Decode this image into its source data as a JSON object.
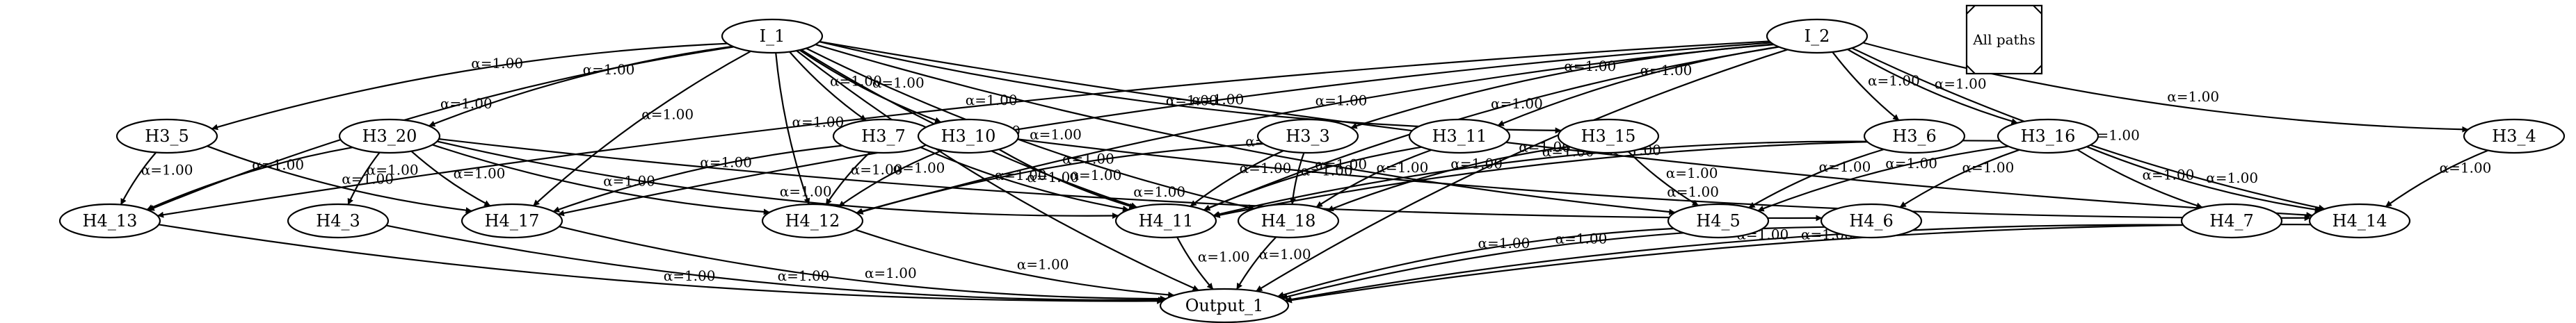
{
  "legend": {
    "label": "All paths"
  },
  "nodes": [
    {
      "id": "I_1",
      "label": "I_1"
    },
    {
      "id": "I_2",
      "label": "I_2"
    },
    {
      "id": "H3_5",
      "label": "H3_5"
    },
    {
      "id": "H3_20",
      "label": "H3_20"
    },
    {
      "id": "H3_7",
      "label": "H3_7"
    },
    {
      "id": "H3_10",
      "label": "H3_10"
    },
    {
      "id": "H3_3",
      "label": "H3_3"
    },
    {
      "id": "H3_11",
      "label": "H3_11"
    },
    {
      "id": "H3_15",
      "label": "H3_15"
    },
    {
      "id": "H3_6",
      "label": "H3_6"
    },
    {
      "id": "H3_16",
      "label": "H3_16"
    },
    {
      "id": "H3_4",
      "label": "H3_4"
    },
    {
      "id": "H4_13",
      "label": "H4_13"
    },
    {
      "id": "H4_3",
      "label": "H4_3"
    },
    {
      "id": "H4_17",
      "label": "H4_17"
    },
    {
      "id": "H4_12",
      "label": "H4_12"
    },
    {
      "id": "H4_11",
      "label": "H4_11"
    },
    {
      "id": "H4_18",
      "label": "H4_18"
    },
    {
      "id": "H4_5",
      "label": "H4_5"
    },
    {
      "id": "H4_6",
      "label": "H4_6"
    },
    {
      "id": "H4_7",
      "label": "H4_7"
    },
    {
      "id": "H4_14",
      "label": "H4_14"
    },
    {
      "id": "Output_1",
      "label": "Output_1"
    }
  ],
  "edges": [
    {
      "from": "I_1",
      "to": "H3_5",
      "label": "α=1.00"
    },
    {
      "from": "I_1",
      "to": "H3_20",
      "label": "α=1.00"
    },
    {
      "from": "I_1",
      "to": "H3_7",
      "label": "α=1.00"
    },
    {
      "from": "I_1",
      "to": "H3_10",
      "label": "α=1.00"
    },
    {
      "from": "I_1",
      "to": "H3_15",
      "label": "α=1.00"
    },
    {
      "from": "I_1",
      "to": "H4_13",
      "label": "α=1.00"
    },
    {
      "from": "I_1",
      "to": "H4_17",
      "label": "α=1.00"
    },
    {
      "from": "I_1",
      "to": "H4_12",
      "label": "α=1.00"
    },
    {
      "from": "I_1",
      "to": "H4_11",
      "label": "α=1.00"
    },
    {
      "from": "I_1",
      "to": "H4_18",
      "label": "α=1.00"
    },
    {
      "from": "I_1",
      "to": "H4_5",
      "label": "α=1.00"
    },
    {
      "from": "I_1",
      "to": "H4_14",
      "label": "α=1.00"
    },
    {
      "from": "I_1",
      "to": "Output_1",
      "label": "α=1.00"
    },
    {
      "from": "I_2",
      "to": "H3_3",
      "label": "α=1.00"
    },
    {
      "from": "I_2",
      "to": "H3_11",
      "label": "α=1.00"
    },
    {
      "from": "I_2",
      "to": "H3_6",
      "label": "α=1.00"
    },
    {
      "from": "I_2",
      "to": "H3_16",
      "label": "α=1.00"
    },
    {
      "from": "I_2",
      "to": "H3_4",
      "label": "α=1.00"
    },
    {
      "from": "I_2",
      "to": "H4_13",
      "label": "α=1.00"
    },
    {
      "from": "I_2",
      "to": "H4_17",
      "label": "α=1.00"
    },
    {
      "from": "I_2",
      "to": "H4_12",
      "label": "α=1.00"
    },
    {
      "from": "I_2",
      "to": "H4_11",
      "label": "α=1.00"
    },
    {
      "from": "I_2",
      "to": "H4_14",
      "label": "α=1.00"
    },
    {
      "from": "I_2",
      "to": "Output_1",
      "label": "α=1.00"
    },
    {
      "from": "H3_5",
      "to": "H4_13",
      "label": "α=1.00"
    },
    {
      "from": "H3_5",
      "to": "H4_17",
      "label": "α=1.00"
    },
    {
      "from": "H3_20",
      "to": "H4_13",
      "label": "α=1.00"
    },
    {
      "from": "H3_20",
      "to": "H4_3",
      "label": "α=1.00"
    },
    {
      "from": "H3_20",
      "to": "H4_17",
      "label": "α=1.00"
    },
    {
      "from": "H3_20",
      "to": "H4_12",
      "label": "α=1.00"
    },
    {
      "from": "H3_20",
      "to": "H4_11",
      "label": "α=1.00"
    },
    {
      "from": "H3_20",
      "to": "H4_6",
      "label": "α=1.00"
    },
    {
      "from": "H3_7",
      "to": "H4_17",
      "label": "α=1.00"
    },
    {
      "from": "H3_7",
      "to": "H4_12",
      "label": "α=1.00"
    },
    {
      "from": "H3_7",
      "to": "H4_11",
      "label": "α=1.00"
    },
    {
      "from": "H3_10",
      "to": "H4_12",
      "label": "α=1.00"
    },
    {
      "from": "H3_10",
      "to": "H4_11",
      "label": "α=1.00"
    },
    {
      "from": "H3_10",
      "to": "H4_14",
      "label": "α=1.00"
    },
    {
      "from": "H3_3",
      "to": "H4_12",
      "label": "α=1.00"
    },
    {
      "from": "H3_3",
      "to": "H4_11",
      "label": "α=1.00"
    },
    {
      "from": "H3_3",
      "to": "H4_18",
      "label": "α=1.00"
    },
    {
      "from": "H3_11",
      "to": "H4_11",
      "label": "α=1.00"
    },
    {
      "from": "H3_11",
      "to": "H4_18",
      "label": "α=1.00"
    },
    {
      "from": "H3_15",
      "to": "H4_18",
      "label": "α=1.00"
    },
    {
      "from": "H3_15",
      "to": "H4_5",
      "label": "α=1.00"
    },
    {
      "from": "H3_6",
      "to": "H4_11",
      "label": "α=1.00"
    },
    {
      "from": "H3_6",
      "to": "H4_5",
      "label": "α=1.00"
    },
    {
      "from": "H3_16",
      "to": "H4_11",
      "label": "α=1.00"
    },
    {
      "from": "H3_16",
      "to": "H4_5",
      "label": "α=1.00"
    },
    {
      "from": "H3_16",
      "to": "H4_6",
      "label": "α=1.00"
    },
    {
      "from": "H3_16",
      "to": "H4_7",
      "label": "α=1.00"
    },
    {
      "from": "H3_16",
      "to": "H4_14",
      "label": "α=1.00"
    },
    {
      "from": "H3_4",
      "to": "H4_14",
      "label": "α=1.00"
    },
    {
      "from": "H4_13",
      "to": "Output_1",
      "label": "α=1.00"
    },
    {
      "from": "H4_3",
      "to": "Output_1",
      "label": "α=1.00"
    },
    {
      "from": "H4_17",
      "to": "Output_1",
      "label": "α=1.00"
    },
    {
      "from": "H4_12",
      "to": "Output_1",
      "label": "α=1.00"
    },
    {
      "from": "H4_11",
      "to": "Output_1",
      "label": "α=1.00"
    },
    {
      "from": "H4_18",
      "to": "Output_1",
      "label": "α=1.00"
    },
    {
      "from": "H4_5",
      "to": "Output_1",
      "label": "α=1.00"
    },
    {
      "from": "H4_6",
      "to": "Output_1",
      "label": "α=1.00"
    },
    {
      "from": "H4_7",
      "to": "Output_1",
      "label": "α=1.00"
    },
    {
      "from": "H4_14",
      "to": "Output_1",
      "label": "α=1.00"
    }
  ]
}
